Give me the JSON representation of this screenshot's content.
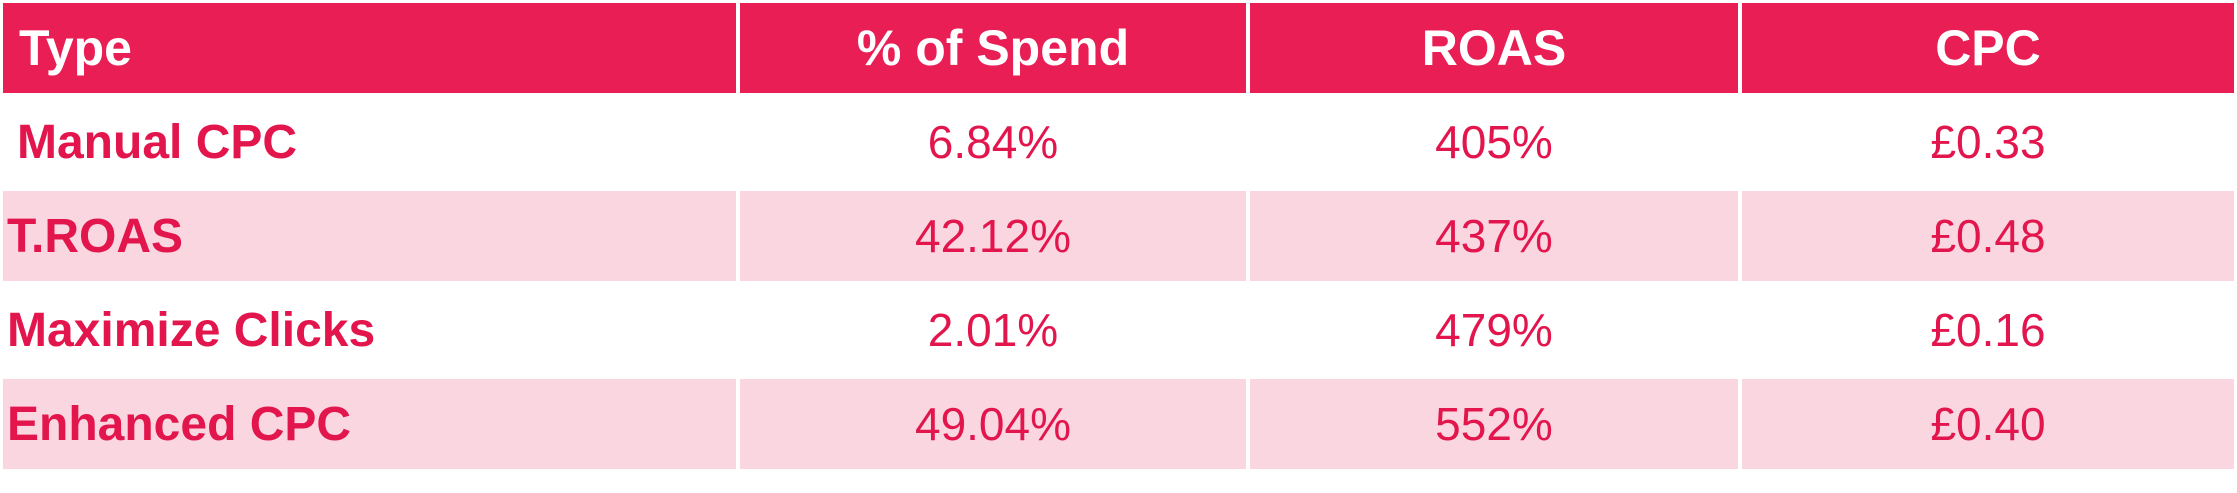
{
  "chart_data": {
    "type": "table",
    "columns": [
      "Type",
      "% of Spend",
      "ROAS",
      "CPC"
    ],
    "rows": [
      [
        "Manual CPC",
        "6.84%",
        "405%",
        "£0.33"
      ],
      [
        "T.ROAS",
        "42.12%",
        "437%",
        "£0.48"
      ],
      [
        "Maximize Clicks",
        "2.01%",
        "479%",
        "£0.16"
      ],
      [
        "Enhanced CPC",
        "49.04%",
        "552%",
        "£0.40"
      ]
    ]
  },
  "colors": {
    "header_bg": "#e91e55",
    "header_text": "#ffffff",
    "text": "#e3154d",
    "row_alt_bg": "#f9d6e0",
    "row_bg": "#ffffff"
  }
}
